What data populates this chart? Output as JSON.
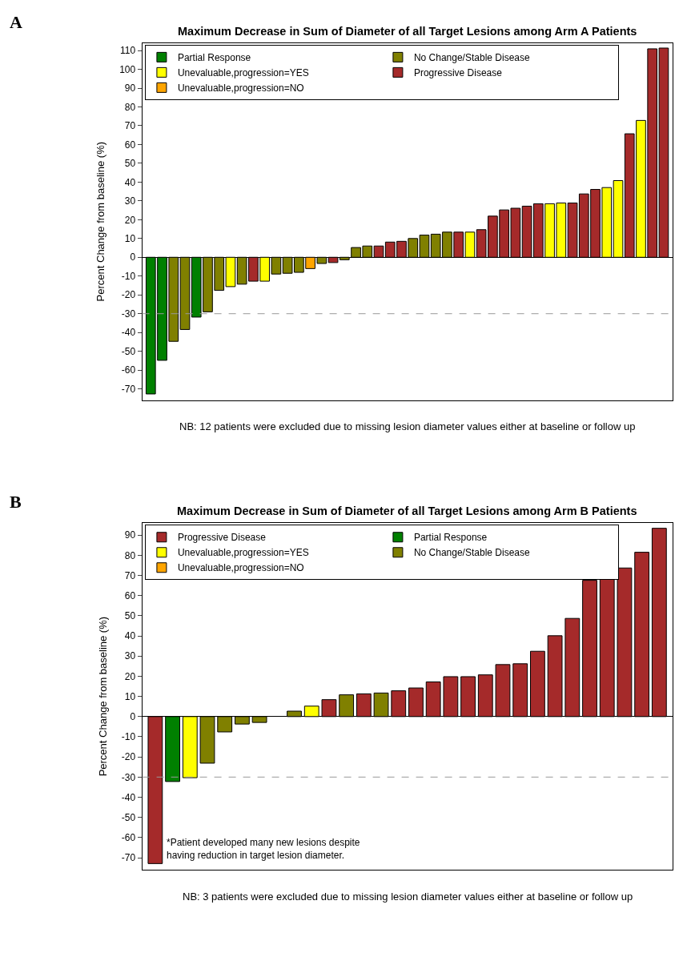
{
  "chart_data": [
    {
      "type": "bar",
      "title": "Maximum Decrease in Sum of Diameter of all Target Lesions among Arm A Patients",
      "ylabel": "Percent Change from baseline (%)",
      "categories": [
        null,
        null,
        null,
        null,
        null,
        null,
        null,
        null,
        null,
        null,
        null,
        null,
        null,
        null,
        null,
        null,
        null,
        null,
        null,
        null,
        null,
        null,
        null,
        null,
        null,
        null,
        null,
        null,
        null,
        null,
        null,
        null,
        null,
        null,
        null,
        null,
        null,
        null,
        null,
        null,
        null,
        null,
        null,
        null,
        null,
        null
      ],
      "series": [
        {
          "name": "Partial Response",
          "color": "#008000",
          "values": [
            -72.7,
            -54.8,
            null,
            null,
            -31.8,
            null,
            null,
            null,
            null,
            null,
            null,
            null,
            null,
            null,
            null,
            null,
            null,
            null,
            null,
            null,
            null,
            null,
            null,
            null,
            null,
            null,
            null,
            null,
            null,
            null,
            null,
            null,
            null,
            null,
            null,
            null,
            null,
            null,
            null,
            null,
            null,
            null,
            null,
            null,
            null,
            null
          ]
        },
        {
          "name": "No Change/Stable Disease",
          "color": "#808000",
          "values": [
            null,
            null,
            -44.7,
            -38.4,
            null,
            -29,
            -17.6,
            null,
            -14.3,
            null,
            null,
            -8.9,
            -8.5,
            -8,
            null,
            -3.3,
            null,
            -1.3,
            5.2,
            6,
            null,
            null,
            null,
            10,
            11.8,
            12.3,
            13.4,
            null,
            null,
            null,
            null,
            null,
            null,
            null,
            null,
            null,
            null,
            null,
            null,
            null,
            null,
            null,
            null,
            null,
            null,
            null
          ]
        },
        {
          "name": "Unevaluable,progression=YES",
          "color": "#ffff00",
          "values": [
            null,
            null,
            null,
            null,
            null,
            null,
            null,
            -15.6,
            null,
            null,
            -12.7,
            null,
            null,
            null,
            null,
            null,
            null,
            null,
            null,
            null,
            null,
            null,
            null,
            null,
            null,
            null,
            null,
            null,
            13.4,
            null,
            null,
            null,
            null,
            null,
            null,
            28.5,
            28.9,
            null,
            null,
            null,
            37.1,
            40.8,
            null,
            72.8,
            null,
            null
          ]
        },
        {
          "name": "Progressive Disease",
          "color": "#a52a2a",
          "values": [
            null,
            null,
            null,
            null,
            null,
            null,
            null,
            null,
            null,
            -12.7,
            null,
            null,
            null,
            null,
            null,
            null,
            -2.8,
            null,
            null,
            null,
            6,
            8.1,
            8.5,
            null,
            null,
            null,
            null,
            13.4,
            null,
            14.7,
            21.9,
            25.2,
            26.1,
            27.2,
            28.5,
            null,
            null,
            28.9,
            33.7,
            36.1,
            null,
            null,
            65.7,
            null,
            110.9,
            111.3
          ]
        },
        {
          "name": "Unevaluable,progression=NO",
          "color": "#ffa500",
          "values": [
            null,
            null,
            null,
            null,
            null,
            null,
            null,
            null,
            null,
            null,
            null,
            null,
            null,
            null,
            -6,
            null,
            null,
            null,
            null,
            null,
            null,
            null,
            null,
            null,
            null,
            null,
            null,
            null,
            null,
            null,
            null,
            null,
            null,
            null,
            null,
            null,
            null,
            null,
            null,
            null,
            null,
            null,
            null,
            null,
            null,
            null
          ]
        }
      ],
      "ylim": [
        -76,
        114
      ],
      "yticks": [
        -70,
        -60,
        -50,
        -40,
        -30,
        -20,
        -10,
        0,
        10,
        20,
        30,
        40,
        50,
        60,
        70,
        80,
        90,
        100,
        110
      ],
      "ref_lines": [
        {
          "axis": "y",
          "value": -30,
          "color": "#999999",
          "line_style": "dashed"
        }
      ],
      "annotations": [
        "A",
        "NB: 12 patients were excluded due to missing lesion diameter values either at baseline or follow up"
      ],
      "legend": "top left",
      "tick_labels": "y"
    },
    {
      "type": "bar",
      "title": "Maximum Decrease in Sum of Diameter of all Target Lesions among Arm B Patients",
      "ylabel": "Percent Change from baseline (%)",
      "categories": [
        null,
        null,
        null,
        null,
        null,
        null,
        null,
        null,
        null,
        null,
        null,
        null,
        null,
        null,
        null,
        null,
        null,
        null,
        null,
        null,
        null,
        null,
        null,
        null,
        null,
        null,
        null,
        null,
        null,
        null
      ],
      "series": [
        {
          "name": "Progressive Disease",
          "color": "#a52a2a",
          "values": [
            -72.9,
            null,
            null,
            null,
            null,
            null,
            null,
            null,
            null,
            null,
            8.4,
            null,
            11.3,
            null,
            12.8,
            14.2,
            17.2,
            19.8,
            19.8,
            20.7,
            25.8,
            26.2,
            32.4,
            40.1,
            48.7,
            67.6,
            68.5,
            73.7,
            81.5,
            93.4
          ]
        },
        {
          "name": "Partial Response",
          "color": "#008000",
          "values": [
            null,
            -32.2,
            null,
            null,
            null,
            null,
            null,
            null,
            null,
            null,
            null,
            null,
            null,
            null,
            null,
            null,
            null,
            null,
            null,
            null,
            null,
            null,
            null,
            null,
            null,
            null,
            null,
            null,
            null,
            null
          ]
        },
        {
          "name": "Unevaluable,progression=YES",
          "color": "#ffff00",
          "values": [
            null,
            null,
            -30.3,
            null,
            null,
            null,
            null,
            null,
            null,
            5.2,
            null,
            null,
            null,
            null,
            null,
            null,
            null,
            null,
            null,
            null,
            null,
            null,
            null,
            null,
            null,
            null,
            null,
            null,
            null,
            null
          ]
        },
        {
          "name": "No Change/Stable Disease",
          "color": "#808000",
          "values": [
            null,
            null,
            null,
            -23.1,
            -7.6,
            -3.7,
            -2.9,
            null,
            2.7,
            null,
            null,
            10.8,
            null,
            11.7,
            null,
            null,
            null,
            null,
            null,
            null,
            null,
            null,
            null,
            null,
            null,
            null,
            null,
            null,
            null,
            null
          ]
        },
        {
          "name": "Unevaluable,progression=NO",
          "color": "#ffa500",
          "values": [
            null,
            null,
            null,
            null,
            null,
            null,
            null,
            null,
            null,
            null,
            null,
            null,
            null,
            null,
            null,
            null,
            null,
            null,
            null,
            null,
            null,
            null,
            null,
            null,
            null,
            null,
            null,
            null,
            null,
            null
          ]
        }
      ],
      "ylim": [
        -76,
        96
      ],
      "yticks": [
        -70,
        -60,
        -50,
        -40,
        -30,
        -20,
        -10,
        0,
        10,
        20,
        30,
        40,
        50,
        60,
        70,
        80,
        90
      ],
      "ref_lines": [
        {
          "axis": "y",
          "value": -30,
          "color": "#999999",
          "line_style": "dashed"
        }
      ],
      "annotations": [
        "B",
        "NB: 3 patients were excluded due to missing lesion diameter values either at baseline or follow up",
        "*Patient developed many new lesions despite\nhaving reduction in target lesion diameter."
      ],
      "legend": "top left",
      "tick_labels": "y"
    }
  ]
}
